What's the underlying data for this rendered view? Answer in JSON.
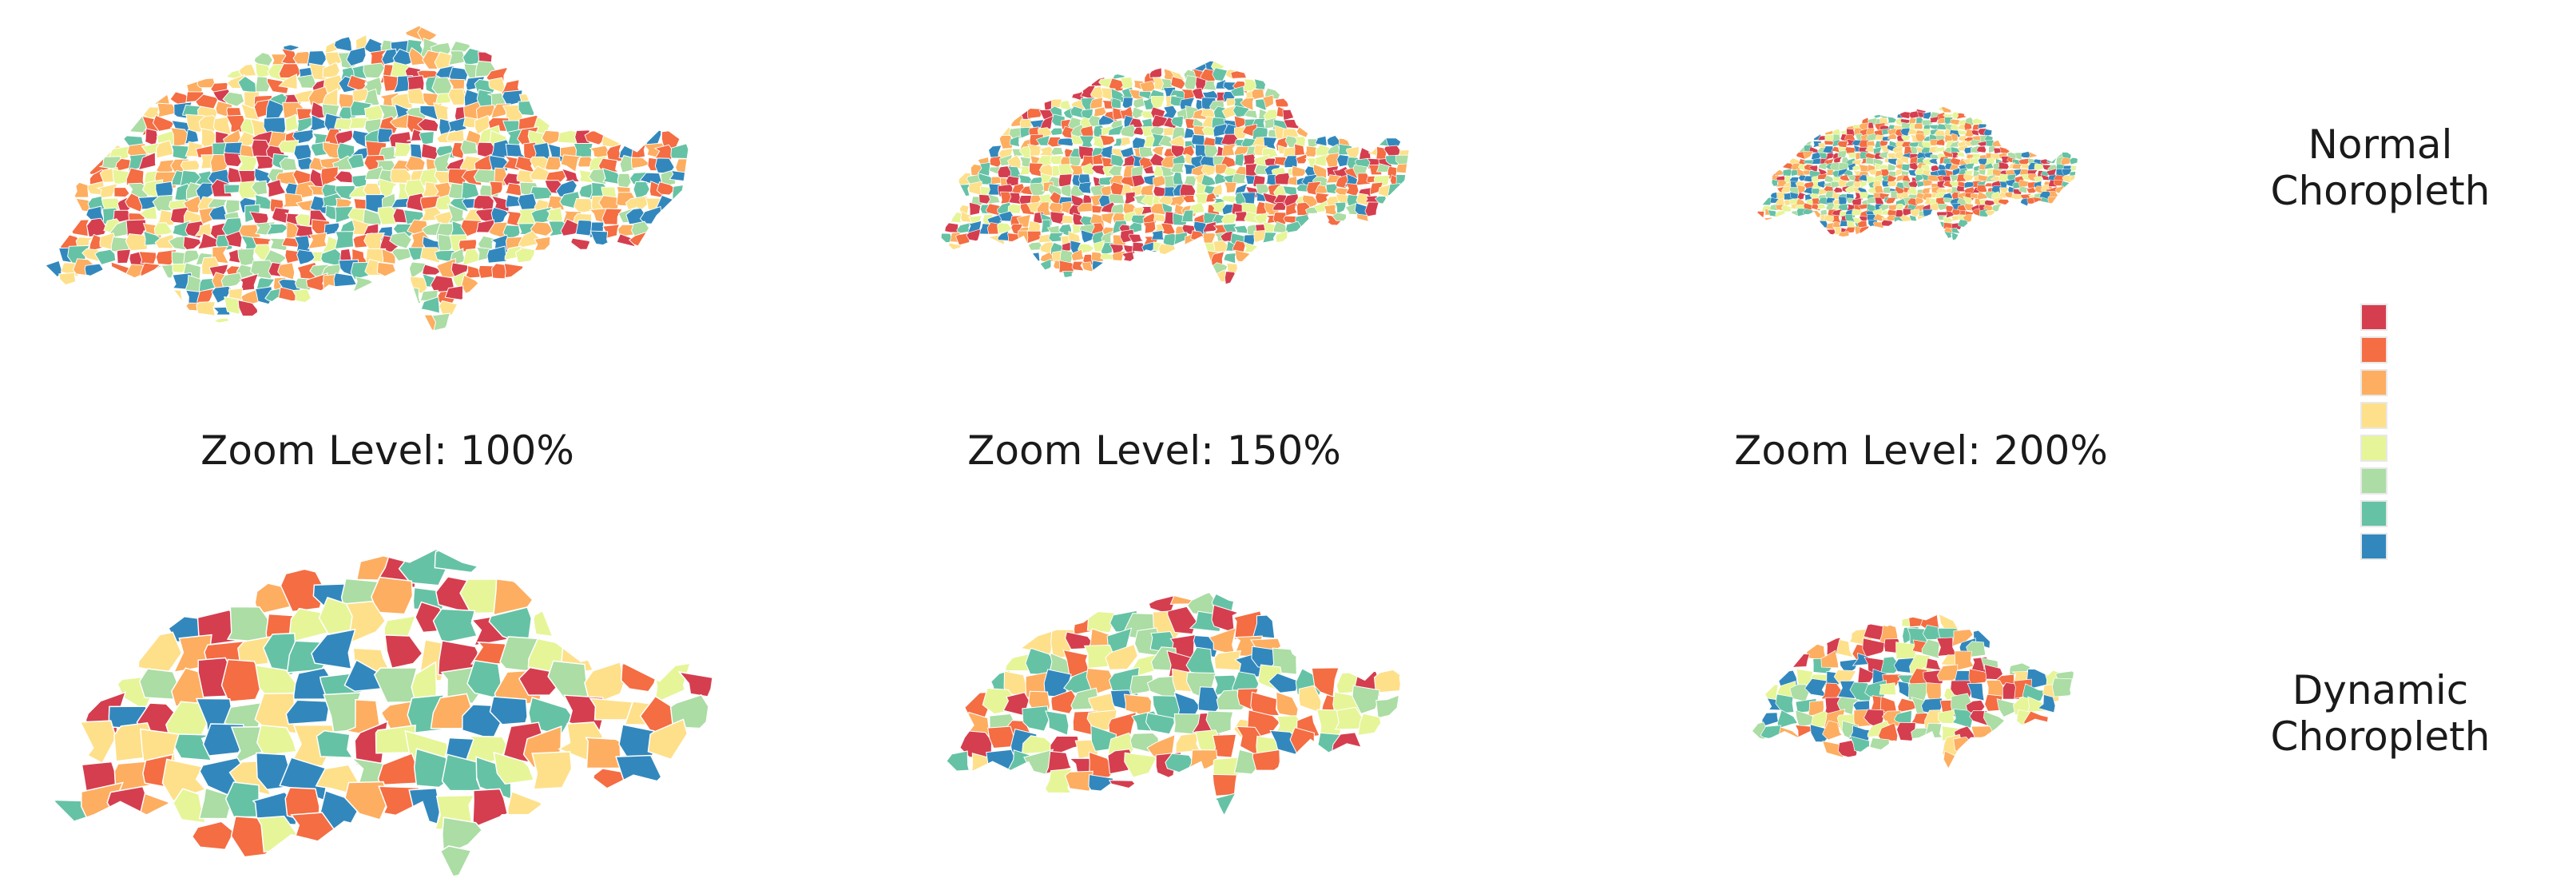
{
  "zoom_labels": [
    "Zoom Level: 100%",
    "Zoom Level: 150%",
    "Zoom Level: 200%"
  ],
  "rows": {
    "normal": {
      "line1": "Normal",
      "line2": "Choropleth"
    },
    "dynamic": {
      "line1": "Dynamic",
      "line2": "Choropleth"
    }
  },
  "legend": {
    "colors": [
      "#d53e4f",
      "#f46d43",
      "#fdae61",
      "#fee08b",
      "#e6f598",
      "#abdda4",
      "#66c2a5",
      "#3288bd"
    ]
  },
  "maps": [
    {
      "id": "top-100",
      "density": "fine",
      "seed": 11
    },
    {
      "id": "top-150",
      "density": "fine",
      "seed": 23
    },
    {
      "id": "top-200",
      "density": "fine",
      "seed": 37
    },
    {
      "id": "bot-100",
      "density": "coarse",
      "seed": 41
    },
    {
      "id": "bot-150",
      "density": "coarse",
      "seed": 53
    },
    {
      "id": "bot-200",
      "density": "coarse",
      "seed": 67
    }
  ]
}
